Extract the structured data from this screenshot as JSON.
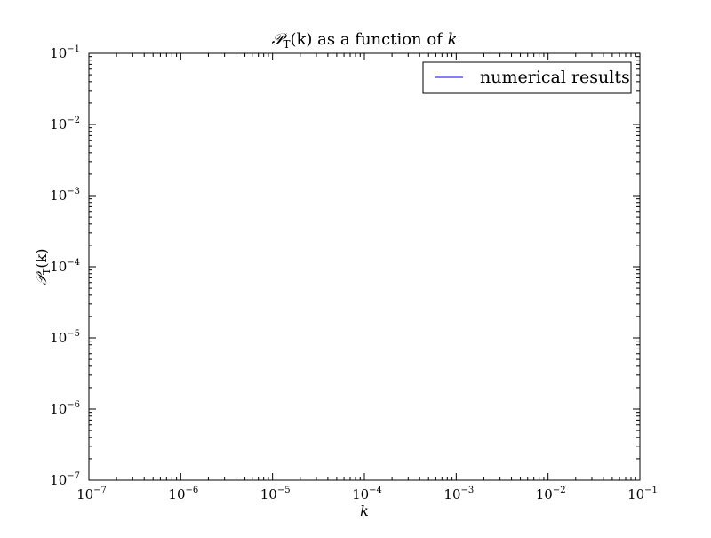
{
  "chart_data": {
    "type": "line",
    "title": {
      "symbol": "𝒫",
      "subscript": "T",
      "argument": "(k)",
      "suffix": " as a function of ",
      "variable": "k"
    },
    "xlabel": "k",
    "ylabel": {
      "symbol": "𝒫",
      "subscript": "T",
      "argument": "(k)"
    },
    "xscale": "log",
    "yscale": "log",
    "xlim": [
      1e-07,
      0.1
    ],
    "ylim": [
      1e-07,
      0.1
    ],
    "grid": false,
    "legend_position": "top-right",
    "x_tick_labels": [
      {
        "value": 1e-07,
        "base": "10",
        "exp": "−7"
      },
      {
        "value": 1e-06,
        "base": "10",
        "exp": "−6"
      },
      {
        "value": 1e-05,
        "base": "10",
        "exp": "−5"
      },
      {
        "value": 0.0001,
        "base": "10",
        "exp": "−4"
      },
      {
        "value": 0.001,
        "base": "10",
        "exp": "−3"
      },
      {
        "value": 0.01,
        "base": "10",
        "exp": "−2"
      },
      {
        "value": 0.1,
        "base": "10",
        "exp": "−1"
      }
    ],
    "y_tick_labels": [
      {
        "value": 1e-07,
        "base": "10",
        "exp": "−7"
      },
      {
        "value": 1e-06,
        "base": "10",
        "exp": "−6"
      },
      {
        "value": 1e-05,
        "base": "10",
        "exp": "−5"
      },
      {
        "value": 0.0001,
        "base": "10",
        "exp": "−4"
      },
      {
        "value": 0.001,
        "base": "10",
        "exp": "−3"
      },
      {
        "value": 0.01,
        "base": "10",
        "exp": "−2"
      },
      {
        "value": 0.1,
        "base": "10",
        "exp": "−1"
      }
    ],
    "series": [
      {
        "name": "numerical results",
        "color": "#0000ff",
        "x": [],
        "y": []
      }
    ]
  }
}
